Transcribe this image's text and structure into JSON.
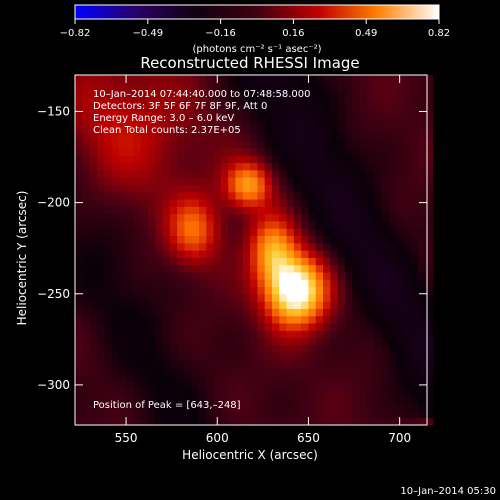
{
  "chart_data": {
    "type": "heatmap",
    "title": "Reconstructed RHESSI Image",
    "xlabel": "Heliocentric X (arcsec)",
    "ylabel": "Heliocentric Y (arcsec)",
    "xlim": [
      522,
      715
    ],
    "ylim": [
      -322,
      -130
    ],
    "x_ticks": [
      550,
      600,
      650,
      700
    ],
    "y_ticks": [
      -150,
      -200,
      -250,
      -300
    ],
    "colorbar": {
      "range": [
        -0.82,
        0.82
      ],
      "ticks": [
        "−0.82",
        "−0.49",
        "−0.16",
        "0.16",
        "0.49",
        "0.82"
      ],
      "units": "(photons cm⁻² s⁻¹ asec⁻²)"
    },
    "annotations": [
      "10–Jan–2014 07:44:40.000 to 07:48:58.000",
      "Detectors: 3F 5F 6F 7F 8F 9F, Att 0",
      "Energy Range: 3.0 – 6.0 keV",
      "Clean    Total counts: 2.37E+05"
    ],
    "peak_label": "Position of Peak = [643,–248]",
    "sources": [
      {
        "x": 643,
        "y": -248,
        "amp": 0.82,
        "sx": 12,
        "sy": 14
      },
      {
        "x": 630,
        "y": -225,
        "amp": 0.45,
        "sx": 9,
        "sy": 13
      },
      {
        "x": 617,
        "y": -190,
        "amp": 0.5,
        "sx": 9,
        "sy": 9
      },
      {
        "x": 587,
        "y": -215,
        "amp": 0.38,
        "sx": 10,
        "sy": 13
      },
      {
        "x": 545,
        "y": -160,
        "amp": 0.22,
        "sx": 30,
        "sy": 30
      }
    ]
  },
  "footer_timestamp": "10–Jan–2014 05:30",
  "colors": {
    "background": "#000000",
    "text": "#ffffff"
  }
}
